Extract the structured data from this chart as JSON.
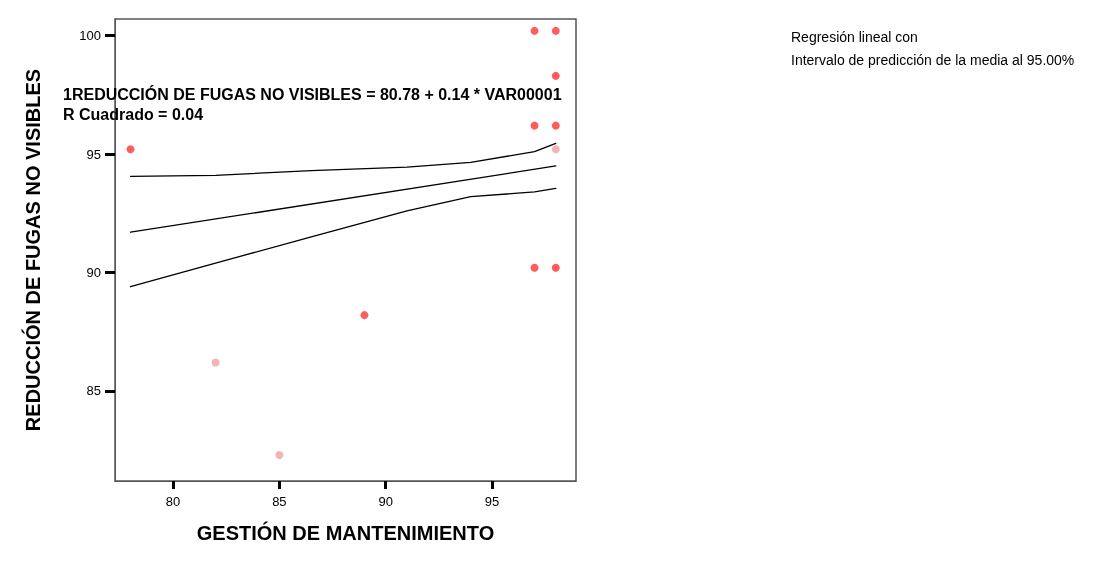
{
  "chart_data": {
    "type": "scatter",
    "xlabel": "GESTIÓN DE MANTENIMIENTO",
    "ylabel": "REDUCCIÓN DE FUGAS NO VISIBLES",
    "annotations": [
      "1REDUCCIÓN DE FUGAS NO VISIBLES = 80.78 + 0.14 * VAR00001",
      "R Cuadrado = 0.04",
      "Regresión lineal con",
      "Intervalo de predicción de la media al 95.00%"
    ],
    "x": [
      78,
      82,
      85,
      89,
      97,
      98,
      98,
      97,
      98,
      98,
      97,
      98
    ],
    "values": [
      95.2,
      86.2,
      82.3,
      88.2,
      100.2,
      100.2,
      98.3,
      96.2,
      96.2,
      95.2,
      90.2,
      90.2
    ],
    "colors": [
      "#ff3333",
      "#f4a0a0",
      "#f4a0a0",
      "#ff3333",
      "#ff3333",
      "#ff3333",
      "#ff3333",
      "#ff3333",
      "#ff3333",
      "#f4a0a0",
      "#ff3333",
      "#ff3333"
    ],
    "series": [
      {
        "type": "line",
        "color": "#000000",
        "marker": "none",
        "x": [
          78,
          98
        ],
        "values": [
          91.7,
          94.5
        ]
      },
      {
        "type": "line",
        "color": "#000000",
        "marker": "none",
        "x": [
          78,
          82,
          86.5,
          91,
          94,
          97,
          98
        ],
        "values": [
          94.06,
          94.1,
          94.3,
          94.45,
          94.65,
          95.1,
          95.45
        ]
      },
      {
        "type": "line",
        "color": "#000000",
        "marker": "none",
        "x": [
          78,
          82,
          86.5,
          91,
          94,
          97,
          98
        ],
        "values": [
          89.4,
          90.4,
          91.5,
          92.6,
          93.2,
          93.4,
          93.55
        ]
      }
    ],
    "marker": "circle",
    "line_style": "solid",
    "grid": false,
    "xlim": [
      77.27,
      98.95
    ],
    "xticks": [
      80,
      85,
      90,
      95
    ],
    "ylim": [
      81.2,
      100.7
    ],
    "yticks": [
      85,
      90,
      95,
      100
    ]
  }
}
